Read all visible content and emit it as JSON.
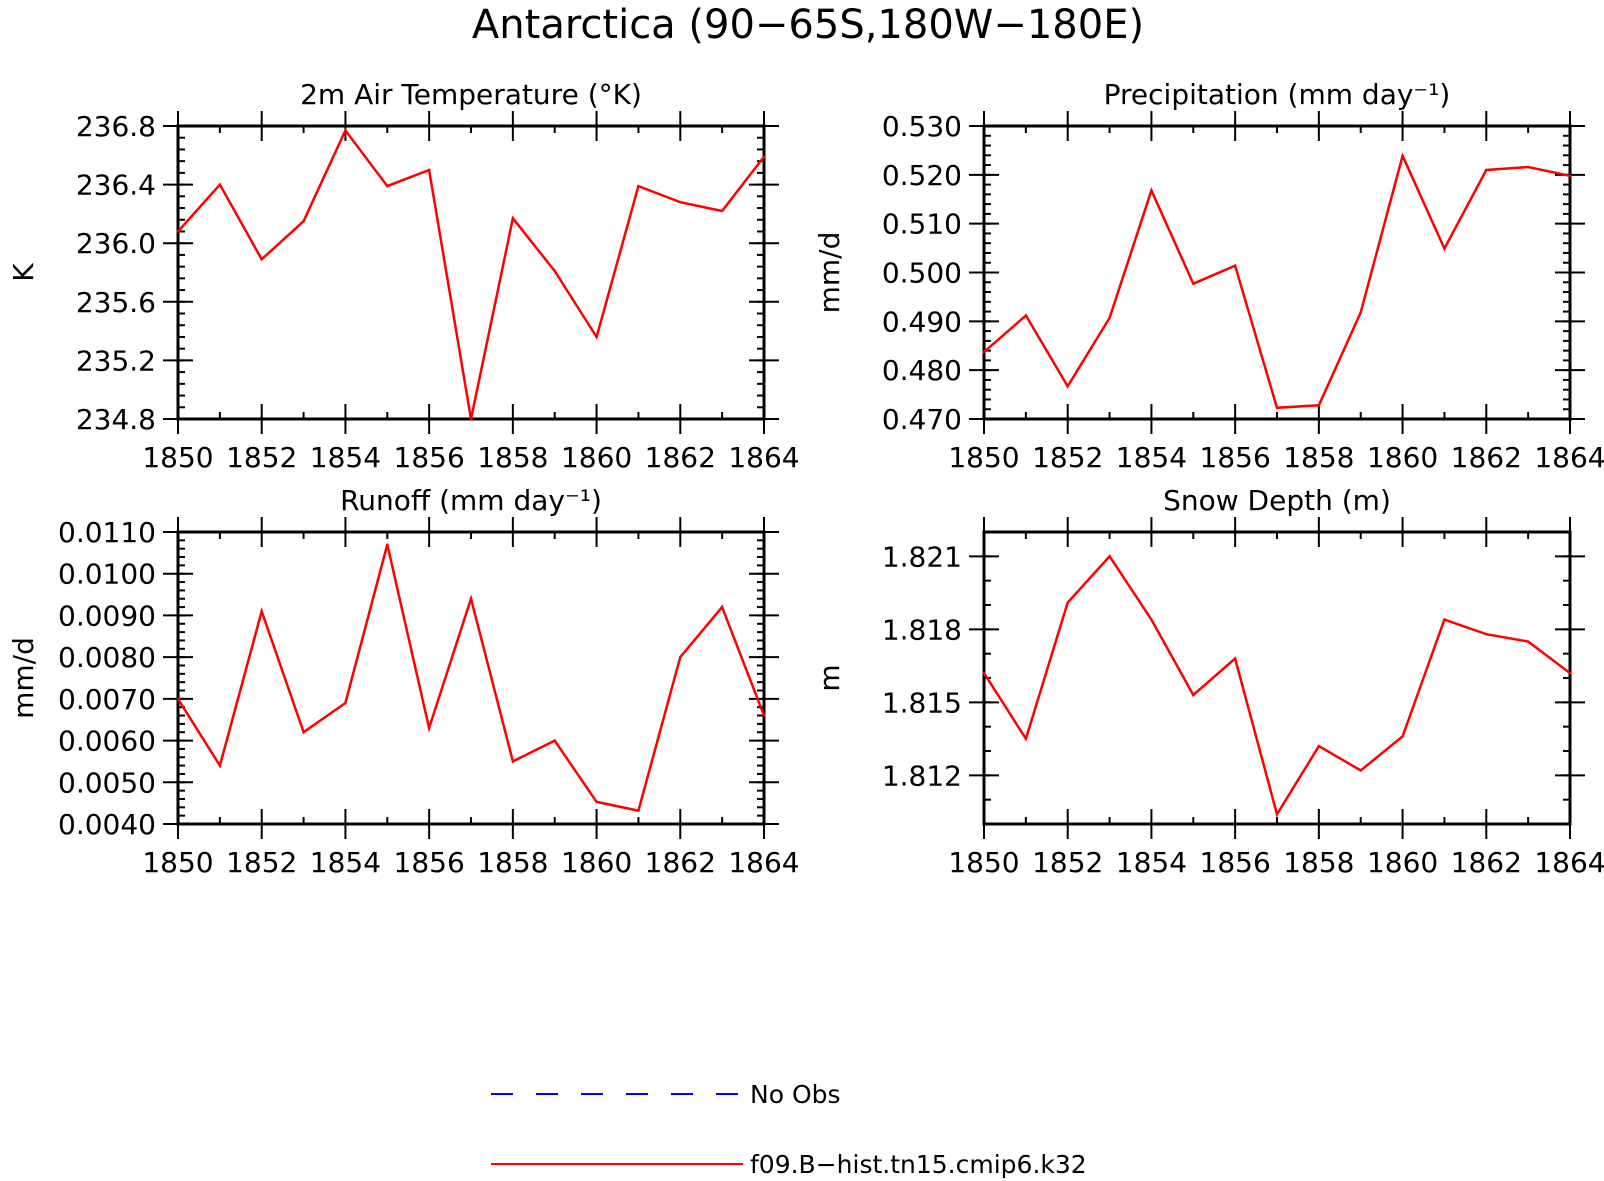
{
  "figure": {
    "title": "Antarctica (90−65S,180W−180E)",
    "line_color": "#ff0000",
    "axis_color": "#000000",
    "background": "#ffffff"
  },
  "chart_data": [
    {
      "type": "line",
      "title": "2m Air Temperature (°K)",
      "xlabel": "",
      "ylabel": "K",
      "xlim": [
        1850,
        1864
      ],
      "ylim": [
        234.8,
        236.8
      ],
      "xticks": [
        1850,
        1852,
        1854,
        1856,
        1858,
        1860,
        1862,
        1864
      ],
      "xtick_labels": [
        "1850",
        "1852",
        "1854",
        "1856",
        "1858",
        "1860",
        "1862",
        "1864"
      ],
      "yticks": [
        234.8,
        235.2,
        235.6,
        236.0,
        236.4,
        236.8
      ],
      "ytick_labels": [
        "234.8",
        "235.2",
        "235.6",
        "236.0",
        "236.4",
        "236.8"
      ],
      "y_minor_step": 0.08,
      "series": [
        {
          "name": "f09.B−hist.tn15.cmip6.k32",
          "x": [
            1850,
            1851,
            1852,
            1853,
            1854,
            1855,
            1856,
            1857,
            1858,
            1859,
            1860,
            1861,
            1862,
            1863,
            1864
          ],
          "y": [
            236.08,
            236.4,
            235.89,
            236.15,
            236.77,
            236.39,
            236.5,
            234.8,
            236.17,
            235.81,
            235.36,
            236.39,
            236.28,
            236.22,
            236.59
          ]
        }
      ]
    },
    {
      "type": "line",
      "title": "Precipitation (mm day⁻¹)",
      "xlabel": "",
      "ylabel": "mm/d",
      "xlim": [
        1850,
        1864
      ],
      "ylim": [
        0.47,
        0.53
      ],
      "xticks": [
        1850,
        1852,
        1854,
        1856,
        1858,
        1860,
        1862,
        1864
      ],
      "xtick_labels": [
        "1850",
        "1852",
        "1854",
        "1856",
        "1858",
        "1860",
        "1862",
        "1864"
      ],
      "yticks": [
        0.47,
        0.48,
        0.49,
        0.5,
        0.51,
        0.52,
        0.53
      ],
      "ytick_labels": [
        "0.470",
        "0.480",
        "0.490",
        "0.500",
        "0.510",
        "0.520",
        "0.530"
      ],
      "y_minor_step": 0.002,
      "series": [
        {
          "name": "f09.B−hist.tn15.cmip6.k32",
          "x": [
            1850,
            1851,
            1852,
            1853,
            1854,
            1855,
            1856,
            1857,
            1858,
            1859,
            1860,
            1861,
            1862,
            1863,
            1864
          ],
          "y": [
            0.4837,
            0.4912,
            0.4767,
            0.4907,
            0.5168,
            0.4977,
            0.5014,
            0.4723,
            0.4728,
            0.4918,
            0.5239,
            0.5049,
            0.521,
            0.5216,
            0.5198
          ]
        }
      ]
    },
    {
      "type": "line",
      "title": "Runoff (mm day⁻¹)",
      "xlabel": "",
      "ylabel": "mm/d",
      "xlim": [
        1850,
        1864
      ],
      "ylim": [
        0.004,
        0.011
      ],
      "xticks": [
        1850,
        1852,
        1854,
        1856,
        1858,
        1860,
        1862,
        1864
      ],
      "xtick_labels": [
        "1850",
        "1852",
        "1854",
        "1856",
        "1858",
        "1860",
        "1862",
        "1864"
      ],
      "yticks": [
        0.004,
        0.005,
        0.006,
        0.007,
        0.008,
        0.009,
        0.01,
        0.011
      ],
      "ytick_labels": [
        "0.0040",
        "0.0050",
        "0.0060",
        "0.0070",
        "0.0080",
        "0.0090",
        "0.0100",
        "0.0110"
      ],
      "y_minor_step": 0.0002,
      "series": [
        {
          "name": "f09.B−hist.tn15.cmip6.k32",
          "x": [
            1850,
            1851,
            1852,
            1853,
            1854,
            1855,
            1856,
            1857,
            1858,
            1859,
            1860,
            1861,
            1862,
            1863,
            1864
          ],
          "y": [
            0.007,
            0.0054,
            0.0091,
            0.0062,
            0.0069,
            0.0107,
            0.0063,
            0.0094,
            0.0055,
            0.006,
            0.00453,
            0.00432,
            0.008,
            0.0092,
            0.0066
          ]
        }
      ]
    },
    {
      "type": "line",
      "title": "Snow Depth (m)",
      "xlabel": "",
      "ylabel": "m",
      "xlim": [
        1850,
        1864
      ],
      "ylim": [
        1.81,
        1.822
      ],
      "xticks": [
        1850,
        1852,
        1854,
        1856,
        1858,
        1860,
        1862,
        1864
      ],
      "xtick_labels": [
        "1850",
        "1852",
        "1854",
        "1856",
        "1858",
        "1860",
        "1862",
        "1864"
      ],
      "yticks": [
        1.812,
        1.815,
        1.818,
        1.821
      ],
      "ytick_labels": [
        "1.812",
        "1.815",
        "1.818",
        "1.821"
      ],
      "y_minor_step": 0.001,
      "series": [
        {
          "name": "f09.B−hist.tn15.cmip6.k32",
          "x": [
            1850,
            1851,
            1852,
            1853,
            1854,
            1855,
            1856,
            1857,
            1858,
            1859,
            1860,
            1861,
            1862,
            1863,
            1864
          ],
          "y": [
            1.8162,
            1.8135,
            1.8191,
            1.821,
            1.8184,
            1.8153,
            1.8168,
            1.8104,
            1.8132,
            1.8122,
            1.8136,
            1.8184,
            1.8178,
            1.8175,
            1.8162
          ]
        }
      ]
    }
  ],
  "legend": {
    "items": [
      {
        "label": "No Obs",
        "color": "#0000ff",
        "style": "dashed"
      },
      {
        "label": "f09.B−hist.tn15.cmip6.k32",
        "color": "#ff0000",
        "style": "solid"
      }
    ]
  }
}
